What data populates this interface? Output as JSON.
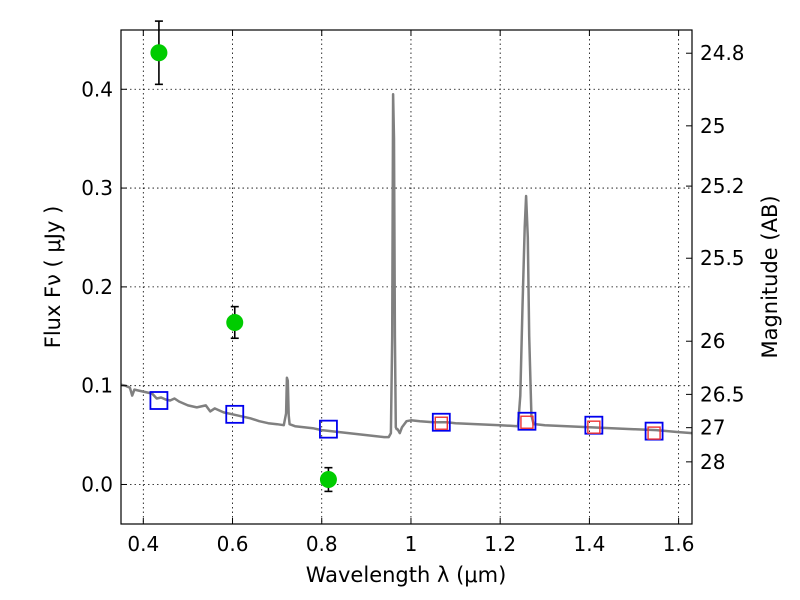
{
  "chart_data": {
    "type": "scatter",
    "xlabel": "Wavelength  λ (μm)",
    "ylabel": "Flux  Fν  ( μJy )",
    "y2label": "Magnitude (AB)",
    "xlim": [
      0.35,
      1.63
    ],
    "ylim": [
      -0.04,
      0.46
    ],
    "grid": true,
    "x_ticks": [
      0.4,
      0.6,
      0.8,
      1.0,
      1.2,
      1.4,
      1.6
    ],
    "x_tick_labels": [
      "0.4",
      "0.6",
      "0.8",
      "1",
      "1.2",
      "1.4",
      "1.6"
    ],
    "y_ticks": [
      0.0,
      0.1,
      0.2,
      0.3,
      0.4
    ],
    "y_tick_labels": [
      "0.0",
      "0.1",
      "0.2",
      "0.3",
      "0.4"
    ],
    "y2_ticks": [
      {
        "label": "24.8",
        "flux": 0.4365
      },
      {
        "label": "25",
        "flux": 0.363
      },
      {
        "label": "25.2",
        "flux": 0.302
      },
      {
        "label": "25.5",
        "flux": 0.229
      },
      {
        "label": "26",
        "flux": 0.145
      },
      {
        "label": "26.5",
        "flux": 0.0912
      },
      {
        "label": "27",
        "flux": 0.0575
      },
      {
        "label": "28",
        "flux": 0.0229
      }
    ],
    "series": [
      {
        "type": "line",
        "color": "#808080",
        "x": [
          0.35,
          0.36,
          0.37,
          0.375,
          0.38,
          0.39,
          0.4,
          0.41,
          0.42,
          0.43,
          0.44,
          0.45,
          0.46,
          0.47,
          0.48,
          0.5,
          0.52,
          0.54,
          0.55,
          0.56,
          0.57,
          0.58,
          0.6,
          0.62,
          0.64,
          0.66,
          0.68,
          0.7,
          0.715,
          0.72,
          0.722,
          0.724,
          0.726,
          0.728,
          0.74,
          0.76,
          0.78,
          0.8,
          0.82,
          0.84,
          0.86,
          0.88,
          0.9,
          0.92,
          0.94,
          0.95,
          0.955,
          0.958,
          0.96,
          0.962,
          0.964,
          0.966,
          0.968,
          0.97,
          0.975,
          0.98,
          0.99,
          1.0,
          1.02,
          1.05,
          1.08,
          1.1,
          1.15,
          1.2,
          1.24,
          1.245,
          1.25,
          1.255,
          1.258,
          1.262,
          1.265,
          1.27,
          1.275,
          1.28,
          1.3,
          1.35,
          1.4,
          1.45,
          1.5,
          1.55,
          1.6,
          1.63
        ],
        "y": [
          0.101,
          0.1,
          0.098,
          0.09,
          0.096,
          0.095,
          0.094,
          0.093,
          0.092,
          0.087,
          0.088,
          0.086,
          0.085,
          0.087,
          0.084,
          0.08,
          0.078,
          0.08,
          0.074,
          0.077,
          0.075,
          0.073,
          0.071,
          0.069,
          0.067,
          0.064,
          0.062,
          0.061,
          0.06,
          0.072,
          0.108,
          0.105,
          0.07,
          0.061,
          0.059,
          0.058,
          0.057,
          0.055,
          0.054,
          0.053,
          0.052,
          0.051,
          0.05,
          0.049,
          0.048,
          0.048,
          0.052,
          0.15,
          0.395,
          0.35,
          0.15,
          0.058,
          0.056,
          0.056,
          0.052,
          0.058,
          0.064,
          0.065,
          0.064,
          0.063,
          0.063,
          0.062,
          0.061,
          0.06,
          0.059,
          0.09,
          0.18,
          0.26,
          0.292,
          0.25,
          0.15,
          0.07,
          0.061,
          0.061,
          0.06,
          0.059,
          0.058,
          0.057,
          0.056,
          0.055,
          0.053,
          0.052
        ]
      },
      {
        "type": "errorbar",
        "marker": "circle",
        "color": "#00cc00",
        "x": [
          0.435,
          0.605,
          0.815
        ],
        "y": [
          0.437,
          0.164,
          0.005
        ],
        "yerr": [
          0.032,
          0.016,
          0.012
        ]
      },
      {
        "type": "scatter",
        "marker": "square-open",
        "color": "#0000ee",
        "x": [
          0.435,
          0.605,
          0.815,
          1.068,
          1.26,
          1.41,
          1.545
        ],
        "y": [
          0.085,
          0.071,
          0.056,
          0.063,
          0.064,
          0.06,
          0.054
        ]
      },
      {
        "type": "scatter",
        "marker": "square-open",
        "color": "#ee3333",
        "x": [
          1.068,
          1.26,
          1.41,
          1.545
        ],
        "y": [
          0.062,
          0.063,
          0.058,
          0.052
        ]
      }
    ]
  }
}
